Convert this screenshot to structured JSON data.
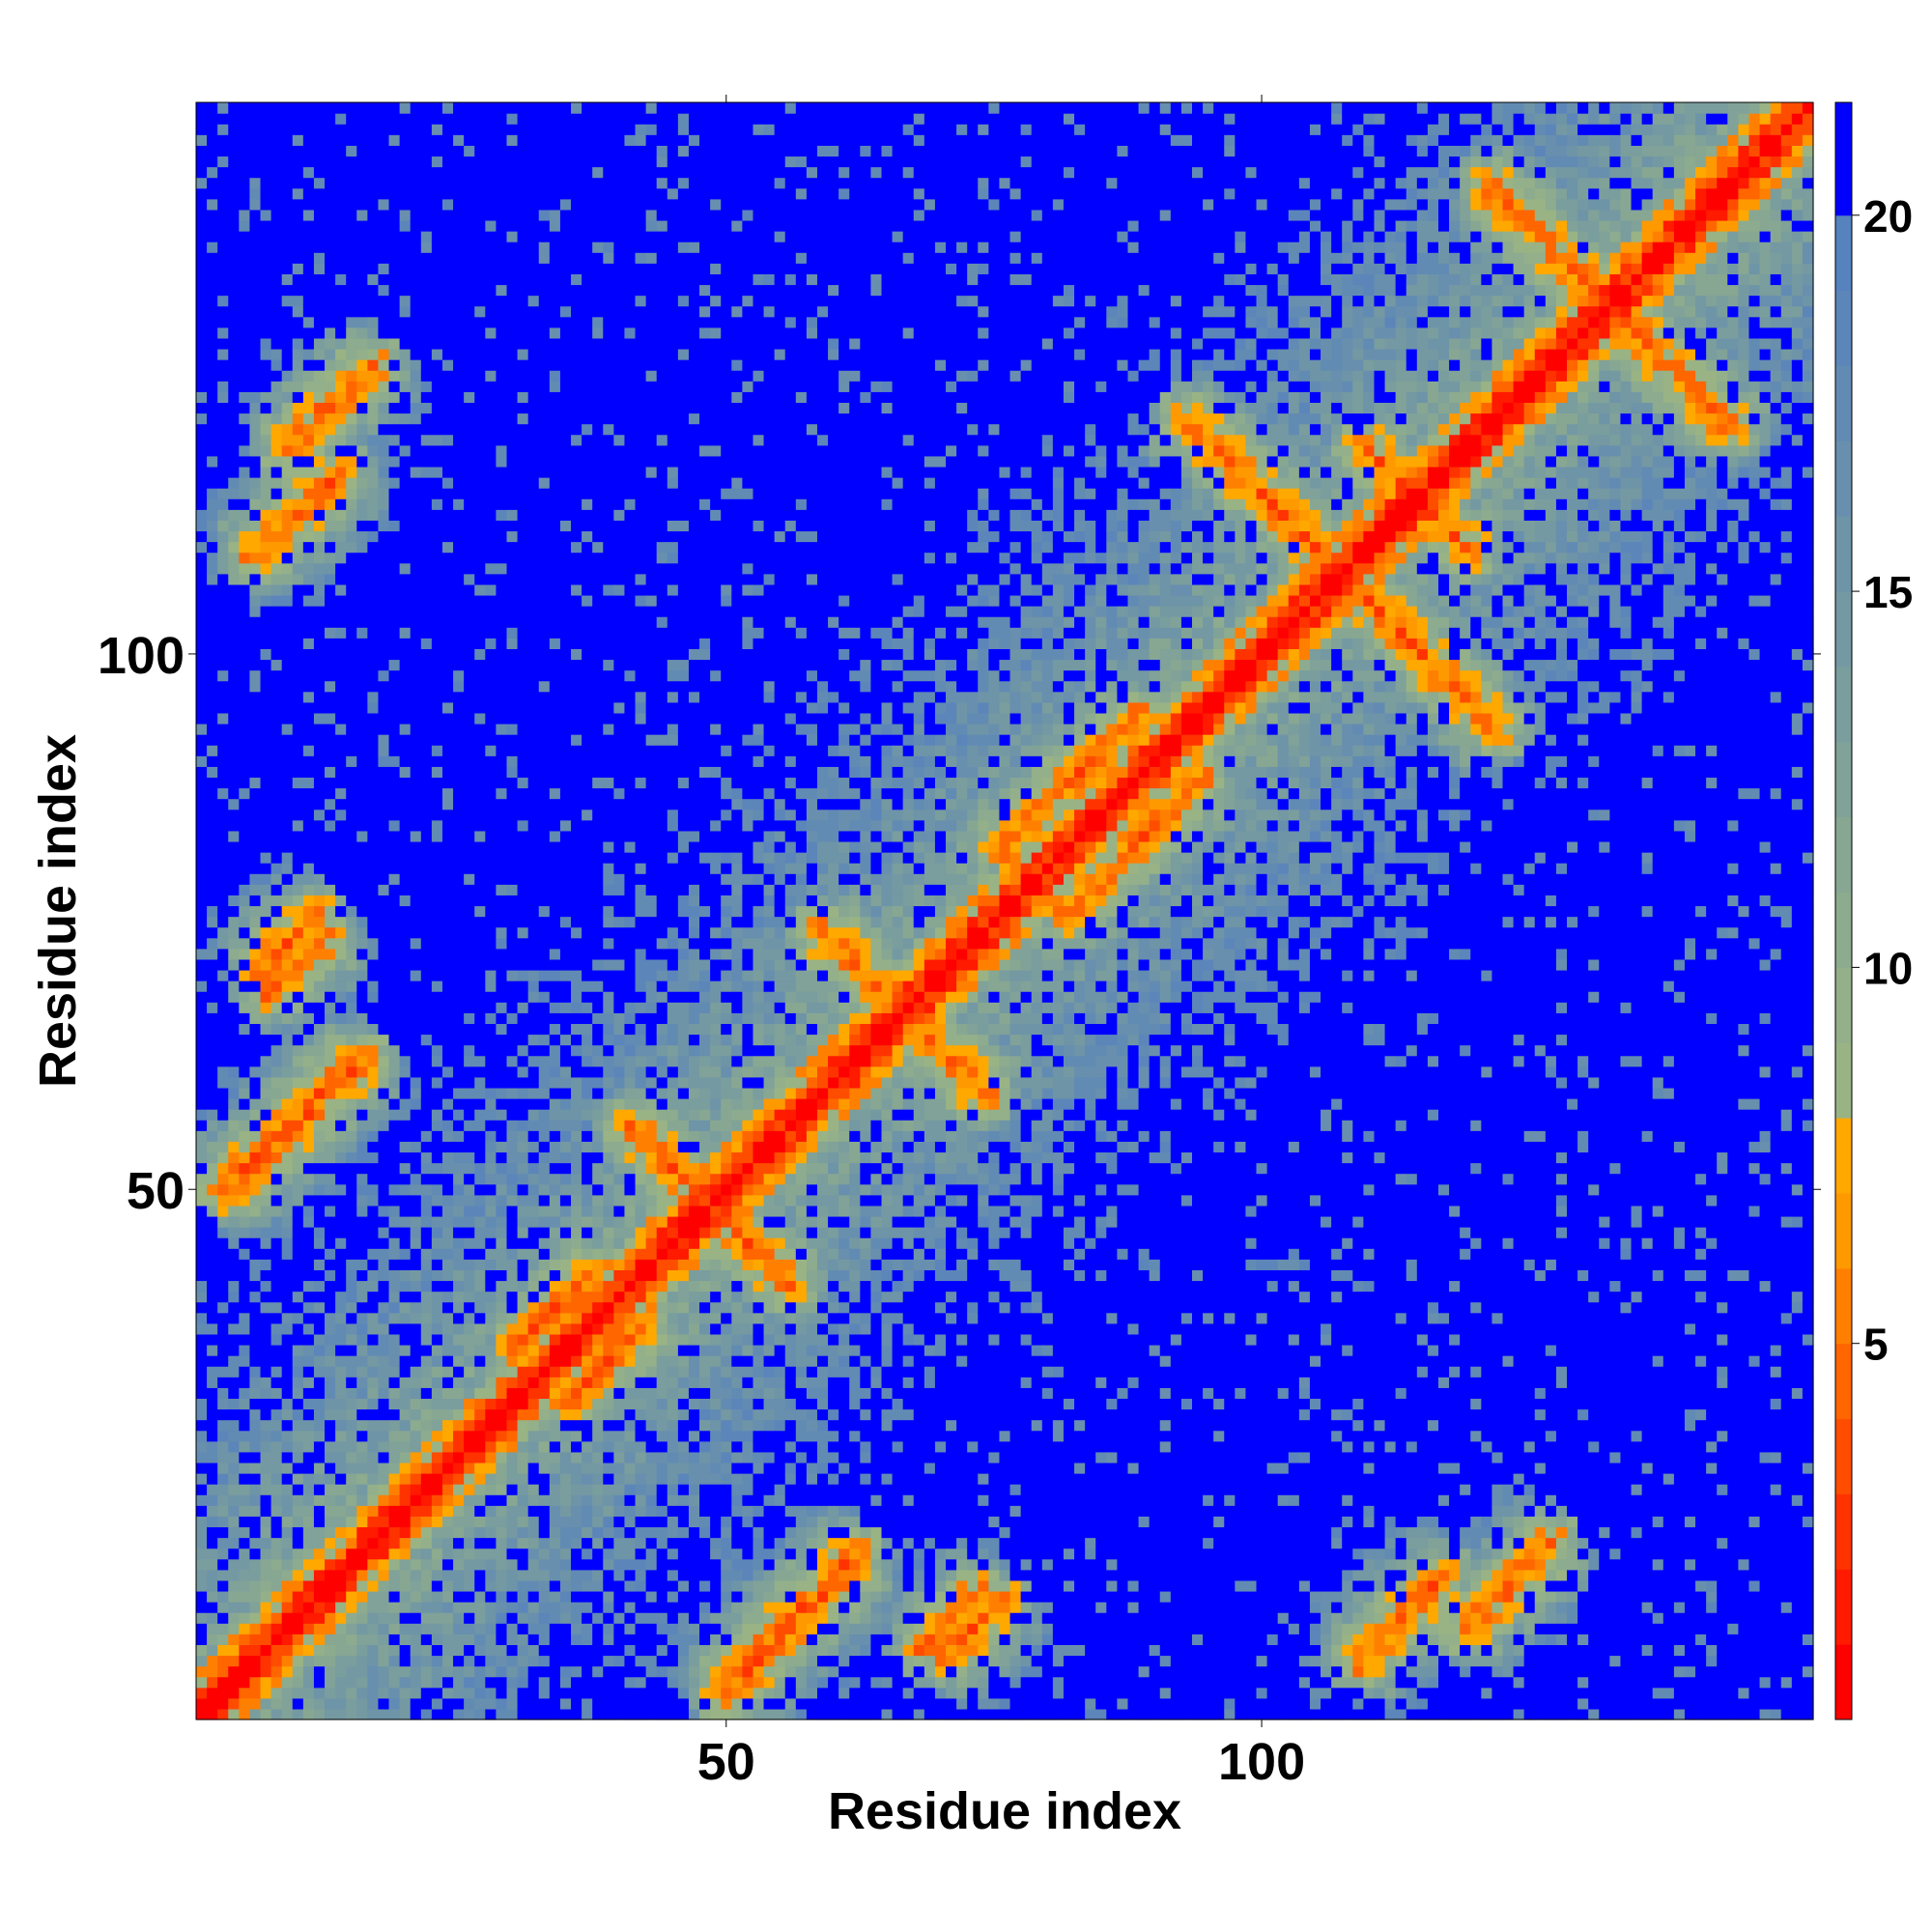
{
  "chart_data": {
    "type": "heatmap",
    "title": "",
    "xlabel": "Residue index",
    "ylabel": "Residue index",
    "n_residues": 151,
    "xlim": [
      1,
      151
    ],
    "ylim": [
      1,
      151
    ],
    "x_ticks": [
      50,
      100
    ],
    "y_ticks": [
      50,
      100
    ],
    "colorbar": {
      "range": [
        0,
        21.5
      ],
      "ticks": [
        5,
        10,
        15,
        20
      ],
      "levels": [
        {
          "max": 1,
          "color": "#ff0000"
        },
        {
          "max": 2,
          "color": "#ff1a00"
        },
        {
          "max": 3,
          "color": "#ff3300"
        },
        {
          "max": 4,
          "color": "#ff4d00"
        },
        {
          "max": 5,
          "color": "#ff6600"
        },
        {
          "max": 6,
          "color": "#ff8000"
        },
        {
          "max": 7,
          "color": "#ff9900"
        },
        {
          "max": 8,
          "color": "#ffa800"
        },
        {
          "max": 9,
          "color": "#99b385"
        },
        {
          "max": 10,
          "color": "#93b08a"
        },
        {
          "max": 11,
          "color": "#8dab8e"
        },
        {
          "max": 12,
          "color": "#87a793"
        },
        {
          "max": 13,
          "color": "#80a298"
        },
        {
          "max": 14,
          "color": "#7a9d9e"
        },
        {
          "max": 15,
          "color": "#7499a3"
        },
        {
          "max": 16,
          "color": "#6e94a8"
        },
        {
          "max": 17,
          "color": "#688fae"
        },
        {
          "max": 18,
          "color": "#628bb3"
        },
        {
          "max": 19,
          "color": "#5c86b9"
        },
        {
          "max": 20,
          "color": "#5682be"
        },
        {
          "max": 21.5,
          "color": "#0000ff"
        }
      ]
    },
    "contact_features": [
      {
        "kind": "diagonal",
        "from": 1,
        "to": 151
      },
      {
        "kind": "antiparallel",
        "center": [
          52,
          45
        ],
        "length": 12
      },
      {
        "kind": "antiparallel",
        "center": [
          70,
          63
        ],
        "length": 12
      },
      {
        "kind": "antiparallel",
        "center": [
          117,
          112
        ],
        "length": 8
      },
      {
        "kind": "antiparallel",
        "center": [
          137,
          128
        ],
        "length": 20
      },
      {
        "kind": "antiparallel",
        "center": [
          102,
          113
        ],
        "length": 26
      },
      {
        "kind": "parallel",
        "center": [
          13,
          123
        ],
        "length": 12
      },
      {
        "kind": "parallel",
        "center": [
          10,
          71
        ],
        "length": 8
      },
      {
        "kind": "parallel",
        "center": [
          10,
          56
        ],
        "length": 18
      },
      {
        "kind": "parallel",
        "center": [
          56,
          9
        ],
        "length": 18
      },
      {
        "kind": "parallel",
        "center": [
          73,
          9
        ],
        "length": 8
      },
      {
        "kind": "parallel",
        "center": [
          113,
          10
        ],
        "length": 12
      },
      {
        "kind": "parallel",
        "center": [
          39,
          34
        ],
        "length": 10
      },
      {
        "kind": "parallel",
        "center": [
          88,
          82
        ],
        "length": 18
      }
    ]
  }
}
